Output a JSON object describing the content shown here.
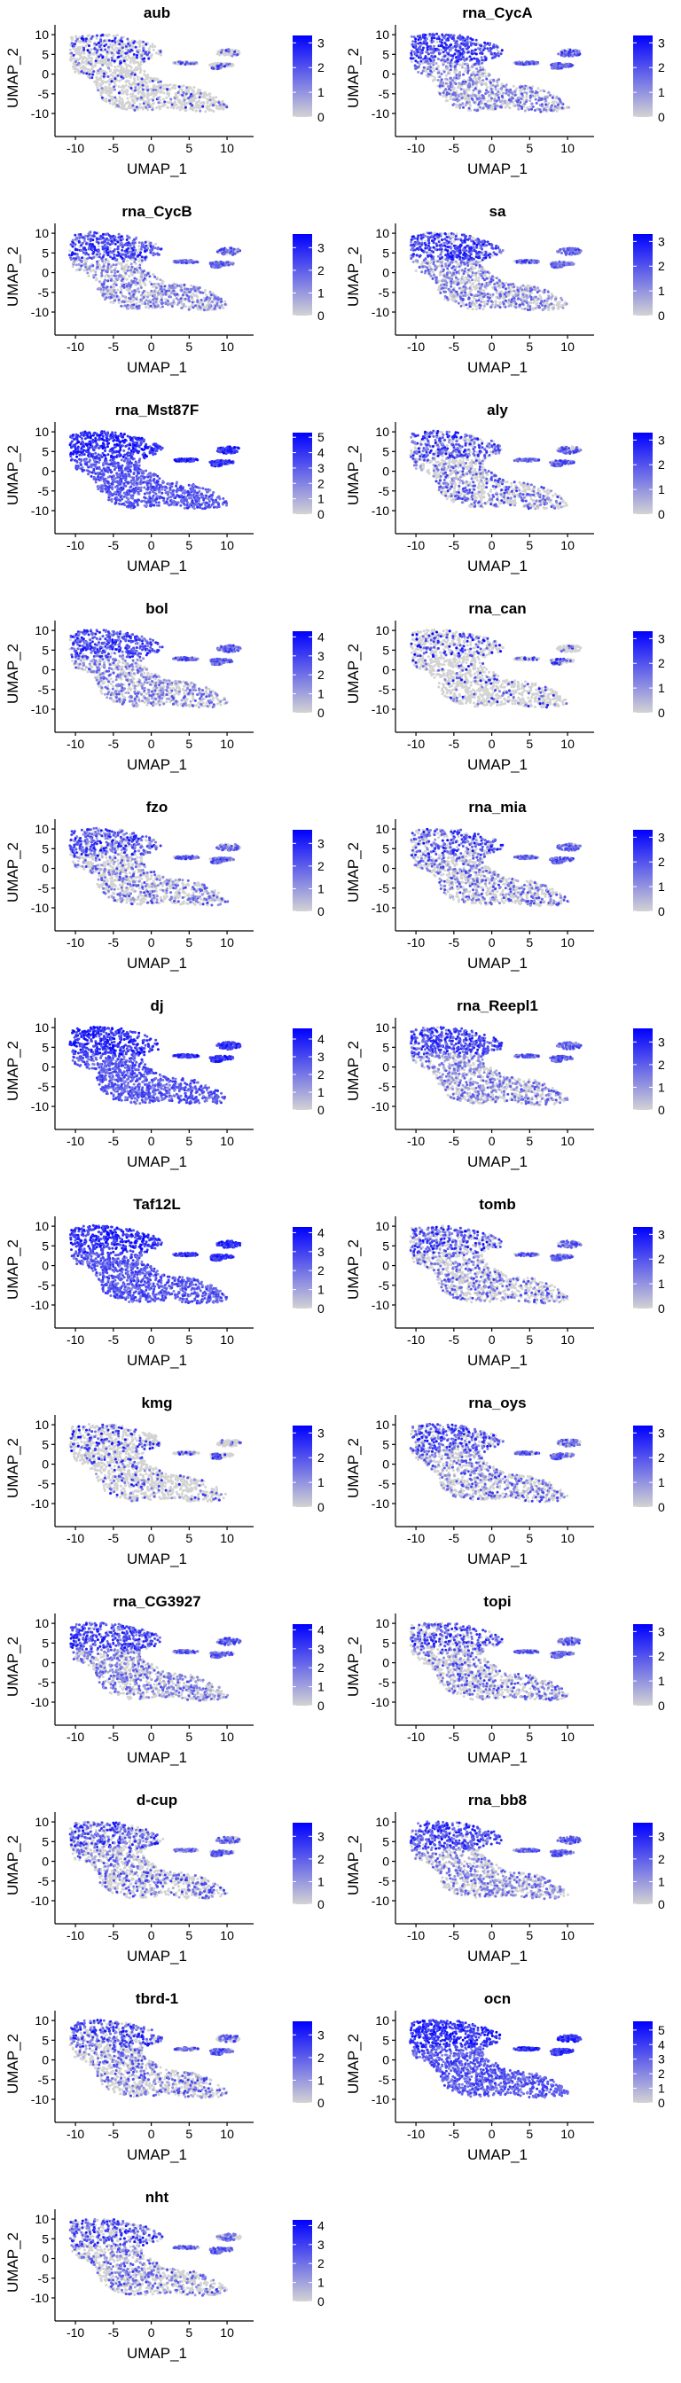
{
  "figure": {
    "xlabel": "UMAP_1",
    "ylabel": "UMAP_2",
    "x_ticks": [
      "-10",
      "-5",
      "0",
      "5",
      "10"
    ],
    "y_ticks": [
      "10",
      "5",
      "0",
      "-5",
      "-10"
    ],
    "colors": {
      "low": "#d3d3d3",
      "high": "#0000ff"
    }
  },
  "chart_data": [
    {
      "type": "scatter",
      "title": "aub",
      "legend_ticks": [
        0,
        1,
        2,
        3
      ],
      "max": 3.3,
      "pattern": "sparse"
    },
    {
      "type": "scatter",
      "title": "rna_CycA",
      "legend_ticks": [
        0,
        1,
        2,
        3
      ],
      "max": 3.3,
      "pattern": "upper"
    },
    {
      "type": "scatter",
      "title": "rna_CycB",
      "legend_ticks": [
        0,
        1,
        2,
        3
      ],
      "max": 3.6,
      "pattern": "upper"
    },
    {
      "type": "scatter",
      "title": "sa",
      "legend_ticks": [
        0,
        1,
        2,
        3
      ],
      "max": 3.3,
      "pattern": "upper"
    },
    {
      "type": "scatter",
      "title": "rna_Mst87F",
      "legend_ticks": [
        0,
        1,
        2,
        3,
        4,
        5
      ],
      "max": 5.3,
      "pattern": "high"
    },
    {
      "type": "scatter",
      "title": "aly",
      "legend_ticks": [
        0,
        1,
        2,
        3
      ],
      "max": 3.3,
      "pattern": "medium"
    },
    {
      "type": "scatter",
      "title": "bol",
      "legend_ticks": [
        0,
        1,
        2,
        3,
        4
      ],
      "max": 4.3,
      "pattern": "upper"
    },
    {
      "type": "scatter",
      "title": "rna_can",
      "legend_ticks": [
        0,
        1,
        2,
        3
      ],
      "max": 3.3,
      "pattern": "sparse"
    },
    {
      "type": "scatter",
      "title": "fzo",
      "legend_ticks": [
        0,
        1,
        2,
        3
      ],
      "max": 3.6,
      "pattern": "medium"
    },
    {
      "type": "scatter",
      "title": "rna_mia",
      "legend_ticks": [
        0,
        1,
        2,
        3
      ],
      "max": 3.3,
      "pattern": "medium"
    },
    {
      "type": "scatter",
      "title": "dj",
      "legend_ticks": [
        0,
        1,
        2,
        3,
        4
      ],
      "max": 4.6,
      "pattern": "high"
    },
    {
      "type": "scatter",
      "title": "rna_Reepl1",
      "legend_ticks": [
        0,
        1,
        2,
        3
      ],
      "max": 3.6,
      "pattern": "upper"
    },
    {
      "type": "scatter",
      "title": "Taf12L",
      "legend_ticks": [
        0,
        1,
        2,
        3,
        4
      ],
      "max": 4.3,
      "pattern": "high"
    },
    {
      "type": "scatter",
      "title": "tomb",
      "legend_ticks": [
        0,
        1,
        2,
        3
      ],
      "max": 3.3,
      "pattern": "medium"
    },
    {
      "type": "scatter",
      "title": "kmg",
      "legend_ticks": [
        0,
        1,
        2,
        3
      ],
      "max": 3.3,
      "pattern": "sparse"
    },
    {
      "type": "scatter",
      "title": "rna_oys",
      "legend_ticks": [
        0,
        1,
        2,
        3
      ],
      "max": 3.3,
      "pattern": "medium"
    },
    {
      "type": "scatter",
      "title": "rna_CG3927",
      "legend_ticks": [
        0,
        1,
        2,
        3,
        4
      ],
      "max": 4.3,
      "pattern": "upper"
    },
    {
      "type": "scatter",
      "title": "topi",
      "legend_ticks": [
        0,
        1,
        2,
        3
      ],
      "max": 3.3,
      "pattern": "medium"
    },
    {
      "type": "scatter",
      "title": "d-cup",
      "legend_ticks": [
        0,
        1,
        2,
        3
      ],
      "max": 3.6,
      "pattern": "medium"
    },
    {
      "type": "scatter",
      "title": "rna_bb8",
      "legend_ticks": [
        0,
        1,
        2,
        3
      ],
      "max": 3.6,
      "pattern": "upper"
    },
    {
      "type": "scatter",
      "title": "tbrd-1",
      "legend_ticks": [
        0,
        1,
        2,
        3
      ],
      "max": 3.6,
      "pattern": "medium"
    },
    {
      "type": "scatter",
      "title": "ocn",
      "legend_ticks": [
        0,
        1,
        2,
        3,
        4,
        5
      ],
      "max": 5.6,
      "pattern": "high"
    },
    {
      "type": "scatter",
      "title": "nht",
      "legend_ticks": [
        0,
        1,
        2,
        3,
        4
      ],
      "max": 4.3,
      "pattern": "medium"
    }
  ]
}
